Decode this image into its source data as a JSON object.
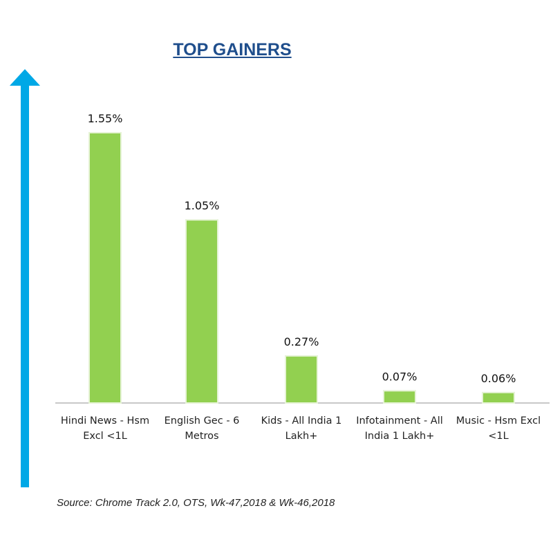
{
  "chart_data": {
    "type": "bar",
    "title": "TOP GAINERS",
    "categories": [
      [
        "Hindi News - Hsm",
        "Excl <1L"
      ],
      [
        "English Gec - 6",
        "Metros"
      ],
      [
        "Kids - All India 1",
        "Lakh+"
      ],
      [
        "Infotainment - All",
        "India 1 Lakh+"
      ],
      [
        "Music - Hsm Excl",
        "<1L"
      ]
    ],
    "values": [
      1.55,
      1.05,
      0.27,
      0.07,
      0.06
    ],
    "value_labels": [
      "1.55%",
      "1.05%",
      "0.27%",
      "0.07%",
      "0.06%"
    ],
    "unit": "%",
    "ylim": [
      0,
      1.6
    ],
    "grid": false,
    "legend": "none",
    "colors": {
      "bar": "#92d050",
      "bar_edge": "#e6f3d6",
      "arrow": "#00a8e6",
      "axis": "#a6a6a6",
      "title": "#1f4e8c"
    },
    "source": "Source: Chrome Track 2.0, OTS, Wk-47,2018 & Wk-46,2018"
  }
}
